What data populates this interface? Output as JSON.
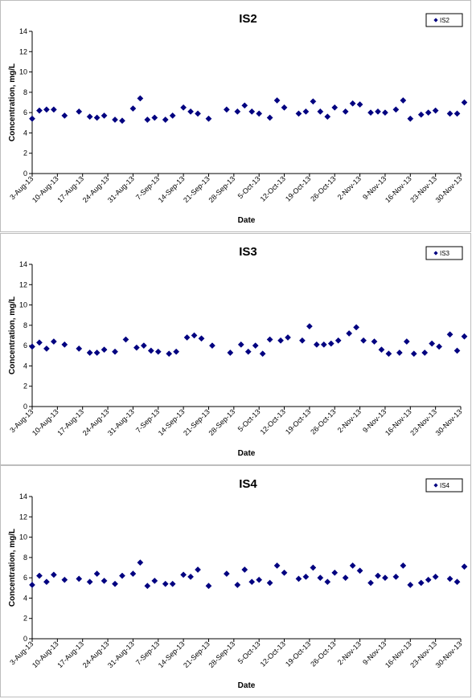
{
  "chart_data": [
    {
      "type": "scatter",
      "title": "IS2",
      "xlabel": "Date",
      "ylabel": "Concentration, mg/L",
      "ylim": [
        0,
        14
      ],
      "yticks": [
        0,
        2,
        4,
        6,
        8,
        10,
        12,
        14
      ],
      "xticks": [
        "3-Aug-13",
        "10-Aug-13",
        "17-Aug-13",
        "24-Aug-13",
        "31-Aug-13",
        "7-Sep-13",
        "14-Sep-13",
        "21-Sep-13",
        "28-Sep-13",
        "5-Oct-13",
        "12-Oct-13",
        "19-Oct-13",
        "26-Oct-13",
        "2-Nov-13",
        "9-Nov-13",
        "16-Nov-13",
        "23-Nov-13",
        "30-Nov-13"
      ],
      "xlim": [
        "2013-08-03",
        "2013-11-30"
      ],
      "legend": "top-right",
      "series": [
        {
          "name": "IS2",
          "color": "#000080",
          "marker": "diamond",
          "x": [
            "2013-08-03",
            "2013-08-05",
            "2013-08-07",
            "2013-08-09",
            "2013-08-12",
            "2013-08-16",
            "2013-08-19",
            "2013-08-21",
            "2013-08-23",
            "2013-08-26",
            "2013-08-28",
            "2013-08-31",
            "2013-09-02",
            "2013-09-04",
            "2013-09-06",
            "2013-09-09",
            "2013-09-11",
            "2013-09-14",
            "2013-09-16",
            "2013-09-18",
            "2013-09-21",
            "2013-09-26",
            "2013-09-29",
            "2013-10-01",
            "2013-10-03",
            "2013-10-05",
            "2013-10-08",
            "2013-10-10",
            "2013-10-12",
            "2013-10-16",
            "2013-10-18",
            "2013-10-20",
            "2013-10-22",
            "2013-10-24",
            "2013-10-26",
            "2013-10-29",
            "2013-10-31",
            "2013-11-02",
            "2013-11-05",
            "2013-11-07",
            "2013-11-09",
            "2013-11-12",
            "2013-11-14",
            "2013-11-16",
            "2013-11-19",
            "2013-11-21",
            "2013-11-23",
            "2013-11-27",
            "2013-11-29",
            "2013-12-01"
          ],
          "y": [
            5.4,
            6.2,
            6.3,
            6.3,
            5.7,
            6.1,
            5.6,
            5.5,
            5.7,
            5.3,
            5.2,
            6.4,
            7.4,
            5.3,
            5.5,
            5.3,
            5.7,
            6.5,
            6.1,
            5.9,
            5.4,
            6.3,
            6.1,
            6.7,
            6.1,
            5.9,
            5.5,
            7.2,
            6.5,
            5.9,
            6.1,
            7.1,
            6.1,
            5.6,
            6.5,
            6.1,
            6.9,
            6.8,
            6.0,
            6.1,
            6.0,
            6.3,
            7.2,
            5.4,
            5.8,
            6.0,
            6.2,
            5.9,
            5.9,
            7.0
          ]
        }
      ]
    },
    {
      "type": "scatter",
      "title": "IS3",
      "xlabel": "Date",
      "ylabel": "Concentration, mg/L",
      "ylim": [
        0,
        14
      ],
      "yticks": [
        0,
        2,
        4,
        6,
        8,
        10,
        12,
        14
      ],
      "xticks": [
        "3-Aug-13",
        "10-Aug-13",
        "17-Aug-13",
        "24-Aug-13",
        "31-Aug-13",
        "7-Sep-13",
        "14-Sep-13",
        "21-Sep-13",
        "28-Sep-13",
        "5-Oct-13",
        "12-Oct-13",
        "19-Oct-13",
        "26-Oct-13",
        "2-Nov-13",
        "9-Nov-13",
        "16-Nov-13",
        "23-Nov-13",
        "30-Nov-13"
      ],
      "xlim": [
        "2013-08-03",
        "2013-11-30"
      ],
      "legend": "top-right",
      "series": [
        {
          "name": "IS3",
          "color": "#000080",
          "marker": "diamond",
          "x": [
            "2013-08-03",
            "2013-08-05",
            "2013-08-07",
            "2013-08-09",
            "2013-08-12",
            "2013-08-16",
            "2013-08-19",
            "2013-08-21",
            "2013-08-23",
            "2013-08-26",
            "2013-08-29",
            "2013-09-01",
            "2013-09-03",
            "2013-09-05",
            "2013-09-07",
            "2013-09-10",
            "2013-09-12",
            "2013-09-15",
            "2013-09-17",
            "2013-09-19",
            "2013-09-22",
            "2013-09-27",
            "2013-09-30",
            "2013-10-02",
            "2013-10-04",
            "2013-10-06",
            "2013-10-08",
            "2013-10-11",
            "2013-10-13",
            "2013-10-17",
            "2013-10-19",
            "2013-10-21",
            "2013-10-23",
            "2013-10-25",
            "2013-10-27",
            "2013-10-30",
            "2013-11-01",
            "2013-11-03",
            "2013-11-06",
            "2013-11-08",
            "2013-11-10",
            "2013-11-13",
            "2013-11-15",
            "2013-11-17",
            "2013-11-20",
            "2013-11-22",
            "2013-11-24",
            "2013-11-27",
            "2013-11-29",
            "2013-12-01"
          ],
          "y": [
            5.9,
            6.3,
            5.7,
            6.4,
            6.1,
            5.7,
            5.3,
            5.3,
            5.6,
            5.4,
            6.6,
            5.8,
            6.0,
            5.5,
            5.4,
            5.2,
            5.4,
            6.8,
            7.0,
            6.7,
            6.0,
            5.3,
            6.1,
            5.4,
            6.0,
            5.2,
            6.6,
            6.5,
            6.8,
            6.5,
            7.9,
            6.1,
            6.1,
            6.2,
            6.5,
            7.2,
            7.8,
            6.5,
            6.4,
            5.6,
            5.2,
            5.3,
            6.4,
            5.2,
            5.3,
            6.2,
            5.9,
            7.1,
            5.5,
            6.9
          ]
        }
      ]
    },
    {
      "type": "scatter",
      "title": "IS4",
      "xlabel": "Date",
      "ylabel": "Concentration, mg/L",
      "ylim": [
        0,
        14
      ],
      "yticks": [
        0,
        2,
        4,
        6,
        8,
        10,
        12,
        14
      ],
      "xticks": [
        "3-Aug-13",
        "10-Aug-13",
        "17-Aug-13",
        "24-Aug-13",
        "31-Aug-13",
        "7-Sep-13",
        "14-Sep-13",
        "21-Sep-13",
        "28-Sep-13",
        "5-Oct-13",
        "12-Oct-13",
        "19-Oct-13",
        "26-Oct-13",
        "2-Nov-13",
        "9-Nov-13",
        "16-Nov-13",
        "23-Nov-13",
        "30-Nov-13"
      ],
      "xlim": [
        "2013-08-03",
        "2013-11-30"
      ],
      "legend": "top-right",
      "series": [
        {
          "name": "IS4",
          "color": "#000080",
          "marker": "diamond",
          "x": [
            "2013-08-03",
            "2013-08-05",
            "2013-08-07",
            "2013-08-09",
            "2013-08-12",
            "2013-08-16",
            "2013-08-19",
            "2013-08-21",
            "2013-08-23",
            "2013-08-26",
            "2013-08-28",
            "2013-08-31",
            "2013-09-02",
            "2013-09-04",
            "2013-09-06",
            "2013-09-09",
            "2013-09-11",
            "2013-09-14",
            "2013-09-16",
            "2013-09-18",
            "2013-09-21",
            "2013-09-26",
            "2013-09-29",
            "2013-10-01",
            "2013-10-03",
            "2013-10-05",
            "2013-10-08",
            "2013-10-10",
            "2013-10-12",
            "2013-10-16",
            "2013-10-18",
            "2013-10-20",
            "2013-10-22",
            "2013-10-24",
            "2013-10-26",
            "2013-10-29",
            "2013-10-31",
            "2013-11-02",
            "2013-11-05",
            "2013-11-07",
            "2013-11-09",
            "2013-11-12",
            "2013-11-14",
            "2013-11-16",
            "2013-11-19",
            "2013-11-21",
            "2013-11-23",
            "2013-11-27",
            "2013-11-29",
            "2013-12-01"
          ],
          "y": [
            5.3,
            6.2,
            5.6,
            6.3,
            5.8,
            5.9,
            5.6,
            6.4,
            5.7,
            5.4,
            6.2,
            6.4,
            7.5,
            5.2,
            5.7,
            5.4,
            5.4,
            6.3,
            6.1,
            6.8,
            5.2,
            6.4,
            5.3,
            6.8,
            5.6,
            5.8,
            5.5,
            7.2,
            6.5,
            5.9,
            6.1,
            7.0,
            6.0,
            5.6,
            6.5,
            6.0,
            7.2,
            6.7,
            5.5,
            6.2,
            6.0,
            6.1,
            7.2,
            5.3,
            5.5,
            5.8,
            6.1,
            5.9,
            5.6,
            7.1
          ]
        }
      ]
    }
  ]
}
